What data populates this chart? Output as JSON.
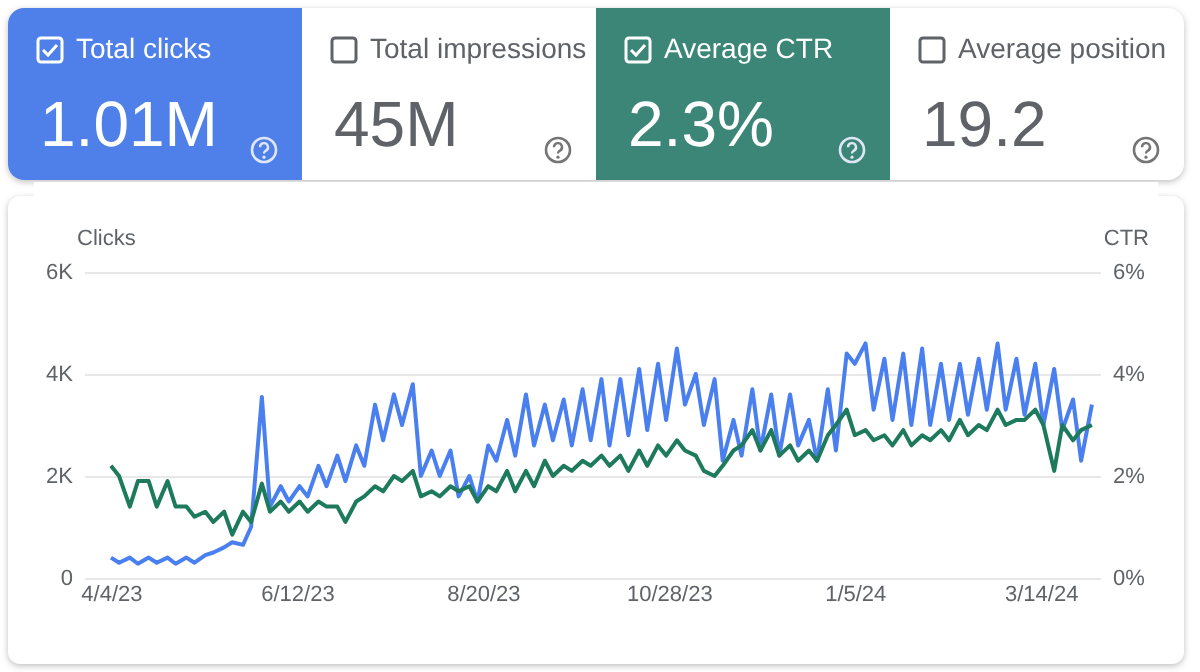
{
  "chart_data": [
    {
      "type": "other",
      "categories": [
        "Total clicks",
        "Total impressions",
        "Average CTR",
        "Average position"
      ],
      "value_labels": [
        "1.01M",
        "45M",
        "2.3%",
        "19.2"
      ],
      "colors": [
        "#4f80e9",
        null,
        "#3b8677",
        null
      ]
    },
    {
      "type": "line",
      "ylabel": "Clicks",
      "y2label": "CTR",
      "grid": "y",
      "line_style": "solid",
      "x": [
        "2023-04-04",
        "2023-04-07",
        "2023-04-11",
        "2023-04-14",
        "2023-04-18",
        "2023-04-21",
        "2023-04-25",
        "2023-04-28",
        "2023-05-02",
        "2023-05-05",
        "2023-05-09",
        "2023-05-12",
        "2023-05-16",
        "2023-05-19",
        "2023-05-23",
        "2023-05-26",
        "2023-05-30",
        "2023-06-02",
        "2023-06-06",
        "2023-06-09",
        "2023-06-13",
        "2023-06-16",
        "2023-06-20",
        "2023-06-23",
        "2023-06-27",
        "2023-06-30",
        "2023-07-04",
        "2023-07-07",
        "2023-07-11",
        "2023-07-14",
        "2023-07-18",
        "2023-07-21",
        "2023-07-25",
        "2023-07-28",
        "2023-08-01",
        "2023-08-04",
        "2023-08-08",
        "2023-08-11",
        "2023-08-15",
        "2023-08-18",
        "2023-08-22",
        "2023-08-25",
        "2023-08-29",
        "2023-09-01",
        "2023-09-05",
        "2023-09-08",
        "2023-09-12",
        "2023-09-15",
        "2023-09-19",
        "2023-09-22",
        "2023-09-26",
        "2023-09-29",
        "2023-10-03",
        "2023-10-06",
        "2023-10-10",
        "2023-10-13",
        "2023-10-17",
        "2023-10-20",
        "2023-10-24",
        "2023-10-27",
        "2023-10-31",
        "2023-11-03",
        "2023-11-07",
        "2023-11-10",
        "2023-11-14",
        "2023-11-17",
        "2023-11-21",
        "2023-11-24",
        "2023-11-28",
        "2023-12-01",
        "2023-12-05",
        "2023-12-08",
        "2023-12-12",
        "2023-12-15",
        "2023-12-19",
        "2023-12-22",
        "2023-12-26",
        "2023-12-29",
        "2024-01-02",
        "2024-01-05",
        "2024-01-09",
        "2024-01-12",
        "2024-01-16",
        "2024-01-19",
        "2024-01-23",
        "2024-01-26",
        "2024-01-30",
        "2024-02-02",
        "2024-02-06",
        "2024-02-09",
        "2024-02-13",
        "2024-02-16",
        "2024-02-20",
        "2024-02-23",
        "2024-02-27",
        "2024-03-01",
        "2024-03-05",
        "2024-03-08",
        "2024-03-12",
        "2024-03-15",
        "2024-03-19",
        "2024-03-22",
        "2024-03-26",
        "2024-03-29",
        "2024-04-02"
      ],
      "xlim": [
        "2023-03-25",
        "2024-04-05"
      ],
      "xticks": [
        {
          "value": "2023-04-04",
          "label": "4/4/23"
        },
        {
          "value": "2023-06-12",
          "label": "6/12/23"
        },
        {
          "value": "2023-08-20",
          "label": "8/20/23"
        },
        {
          "value": "2023-10-28",
          "label": "10/28/23"
        },
        {
          "value": "2024-01-05",
          "label": "1/5/24"
        },
        {
          "value": "2024-03-14",
          "label": "3/14/24"
        }
      ],
      "ylim": [
        0,
        6000
      ],
      "yticks": [
        {
          "value": 0,
          "label": "0"
        },
        {
          "value": 2000,
          "label": "2K"
        },
        {
          "value": 4000,
          "label": "4K"
        },
        {
          "value": 6000,
          "label": "6K"
        }
      ],
      "y2lim": [
        0,
        6
      ],
      "y2ticks": [
        {
          "value": 0,
          "label": "0%"
        },
        {
          "value": 2,
          "label": "2%"
        },
        {
          "value": 4,
          "label": "4%"
        },
        {
          "value": 6,
          "label": "6%"
        }
      ],
      "series": [
        {
          "color": "#4a7ff0",
          "values": [
            400,
            300,
            400,
            280,
            400,
            300,
            400,
            280,
            400,
            300,
            450,
            500,
            600,
            700,
            650,
            1000,
            3550,
            1400,
            1800,
            1500,
            1800,
            1600,
            2200,
            1800,
            2400,
            1900,
            2600,
            2200,
            3400,
            2700,
            3600,
            3000,
            3800,
            2000,
            2500,
            2000,
            2500,
            1600,
            2000,
            1500,
            2600,
            2300,
            3100,
            2400,
            3600,
            2600,
            3400,
            2700,
            3500,
            2600,
            3700,
            2700,
            3900,
            2600,
            3900,
            2800,
            4100,
            2900,
            4200,
            3100,
            4500,
            3400,
            4000,
            3000,
            3900,
            2300,
            3100,
            2400,
            3700,
            2500,
            3600,
            2400,
            3600,
            2600,
            3100,
            2300,
            3700,
            2500,
            4400,
            4200,
            4600,
            3300,
            4300,
            3100,
            4400,
            3000,
            4500,
            3000,
            4200,
            3100,
            4200,
            3200,
            4300,
            3300,
            4600,
            3300,
            4300,
            3200,
            4200,
            3000,
            4100,
            2900,
            3500,
            2300,
            3400
          ]
        },
        {
          "color": "#1d7a5c",
          "axis": "y2",
          "values": [
            2.2,
            2.0,
            1.4,
            1.9,
            1.9,
            1.4,
            1.9,
            1.4,
            1.4,
            1.2,
            1.3,
            1.1,
            1.3,
            0.85,
            1.3,
            1.1,
            1.85,
            1.3,
            1.5,
            1.3,
            1.5,
            1.3,
            1.5,
            1.4,
            1.4,
            1.1,
            1.5,
            1.6,
            1.8,
            1.7,
            2.0,
            1.9,
            2.1,
            1.6,
            1.7,
            1.6,
            1.8,
            1.7,
            1.8,
            1.5,
            1.8,
            1.7,
            2.1,
            1.7,
            2.1,
            1.8,
            2.3,
            2.0,
            2.2,
            2.1,
            2.3,
            2.2,
            2.4,
            2.2,
            2.4,
            2.1,
            2.5,
            2.2,
            2.6,
            2.4,
            2.7,
            2.5,
            2.4,
            2.1,
            2.0,
            2.2,
            2.5,
            2.6,
            2.9,
            2.5,
            2.9,
            2.4,
            2.6,
            2.3,
            2.5,
            2.3,
            2.8,
            3.0,
            3.3,
            2.8,
            2.9,
            2.7,
            2.8,
            2.6,
            2.9,
            2.6,
            2.8,
            2.7,
            2.9,
            2.7,
            3.1,
            2.8,
            3.0,
            2.9,
            3.3,
            3.0,
            3.1,
            3.1,
            3.3,
            3.0,
            2.1,
            3.0,
            2.7,
            2.9,
            3.0
          ]
        }
      ]
    }
  ]
}
